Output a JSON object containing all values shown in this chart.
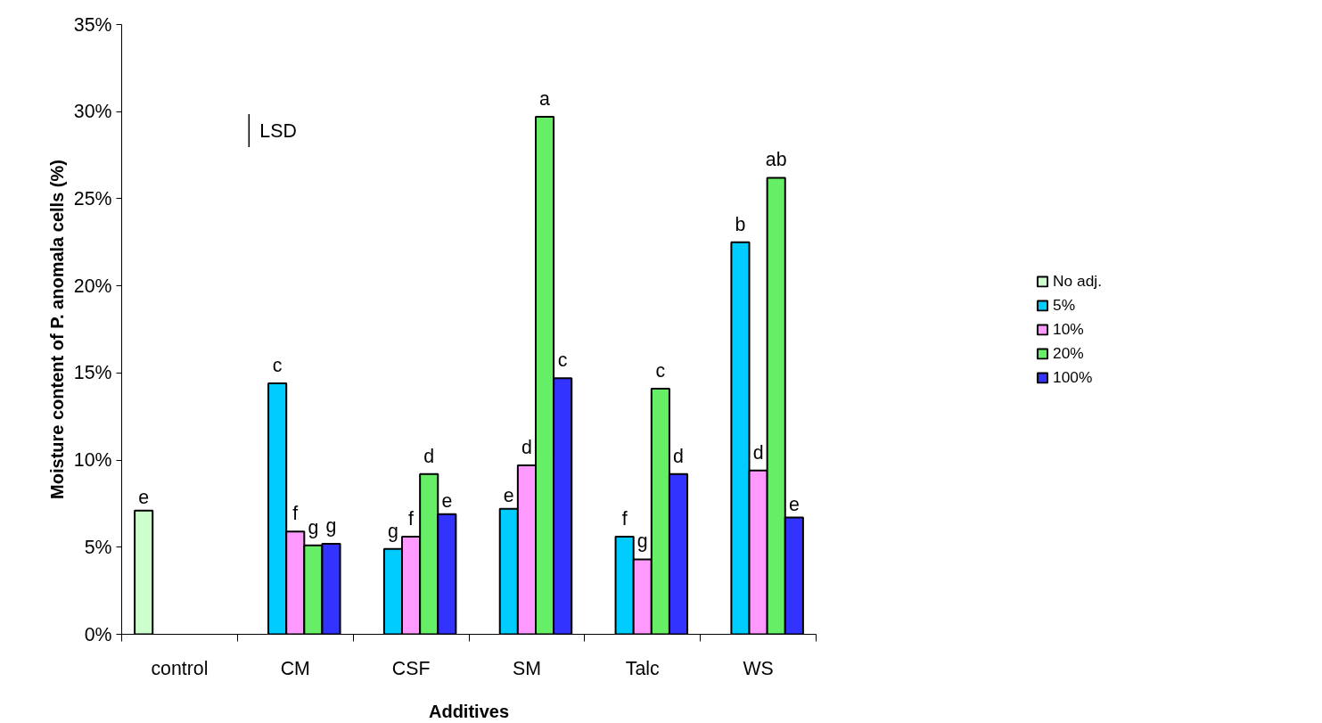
{
  "chart_data": {
    "type": "bar",
    "xlabel": "Additives",
    "ylabel": "Moisture content of P. anomala cells (%)",
    "categories": [
      "control",
      "CM",
      "CSF",
      "SM",
      "Talc",
      "WS"
    ],
    "series": [
      {
        "name": "No adj.",
        "color": "#ccffcc",
        "values": [
          7.1,
          null,
          null,
          null,
          null,
          null
        ],
        "value_labels": [
          "e",
          null,
          null,
          null,
          null,
          null
        ]
      },
      {
        "name": "5%",
        "color": "#00ccff",
        "values": [
          null,
          14.4,
          4.9,
          7.2,
          5.6,
          22.5
        ],
        "value_labels": [
          null,
          "c",
          "g",
          "e",
          "f",
          "b"
        ]
      },
      {
        "name": "10%",
        "color": "#ff99ff",
        "values": [
          null,
          5.9,
          5.6,
          9.7,
          4.3,
          9.4
        ],
        "value_labels": [
          null,
          "f",
          "f",
          "d",
          "g",
          "d"
        ]
      },
      {
        "name": "20%",
        "color": "#66ee66",
        "values": [
          null,
          5.1,
          9.2,
          29.7,
          14.1,
          26.2
        ],
        "value_labels": [
          null,
          "g",
          "d",
          "a",
          "c",
          "ab"
        ]
      },
      {
        "name": "100%",
        "color": "#3333ff",
        "values": [
          null,
          5.2,
          6.9,
          14.7,
          9.2,
          6.7
        ],
        "value_labels": [
          null,
          "g",
          "e",
          "c",
          "d",
          "e"
        ]
      }
    ],
    "ylim": [
      0,
      35
    ],
    "yticks": [
      {
        "value": 0,
        "label": "0%"
      },
      {
        "value": 5,
        "label": "5%"
      },
      {
        "value": 10,
        "label": "10%"
      },
      {
        "value": 15,
        "label": "15%"
      },
      {
        "value": 20,
        "label": "20%"
      },
      {
        "value": 25,
        "label": "25%"
      },
      {
        "value": 30,
        "label": "30%"
      },
      {
        "value": 35,
        "label": "35%"
      }
    ],
    "annotations": [
      "LSD"
    ],
    "grid": false,
    "legend": "right"
  }
}
